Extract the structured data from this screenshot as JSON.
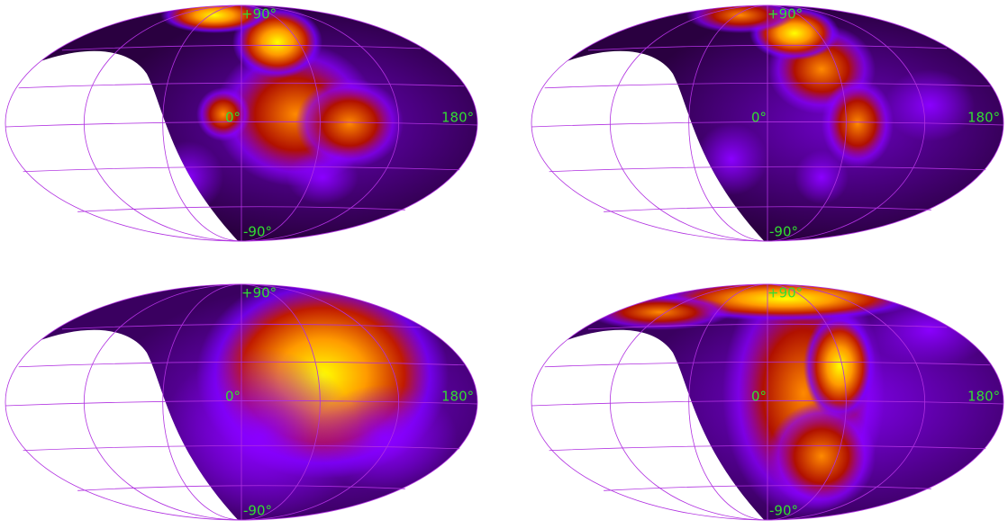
{
  "panels": [
    {
      "north": "+90°",
      "center": "0°",
      "east": "180°",
      "south": "-90°"
    },
    {
      "north": "+90°",
      "center": "0°",
      "east": "180°",
      "south": "-90°"
    },
    {
      "north": "+90°",
      "center": "0°",
      "east": "180°",
      "south": "-90°"
    },
    {
      "north": "+90°",
      "center": "0°",
      "east": "180°",
      "south": "-90°"
    }
  ]
}
